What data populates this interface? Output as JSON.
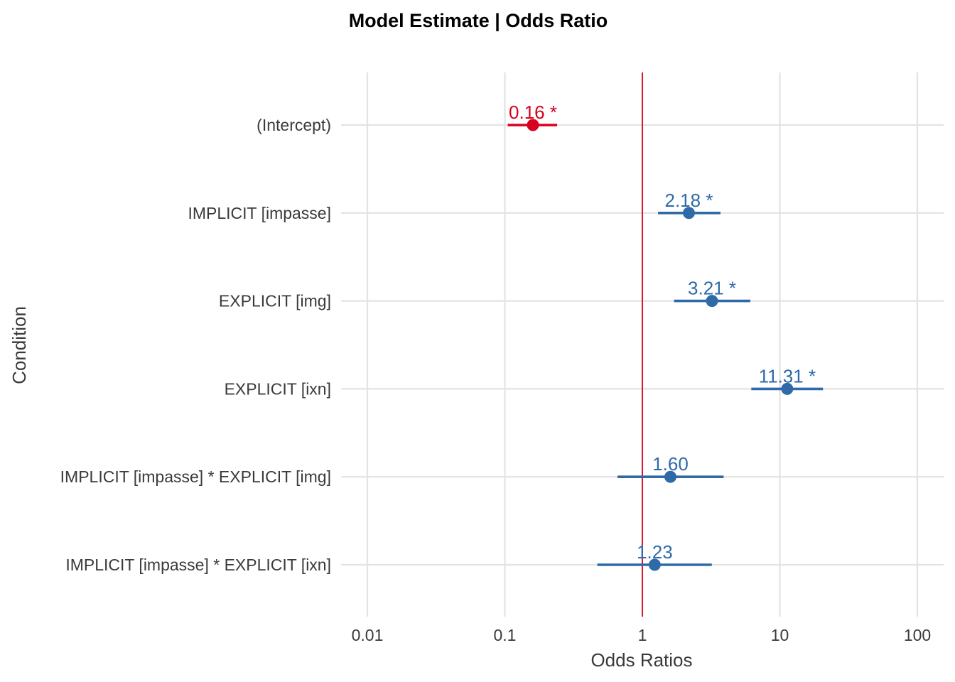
{
  "chart_data": {
    "type": "scatter",
    "title": "Model Estimate | Odds Ratio",
    "xlabel": "Odds Ratios",
    "ylabel": "Condition",
    "x_scale": "log",
    "xlim": [
      0.01,
      100
    ],
    "x_ticks": [
      "0.01",
      "0.1",
      "1",
      "10",
      "100"
    ],
    "x_tick_values": [
      0.01,
      0.1,
      1,
      10,
      100
    ],
    "reference_line": 1,
    "grid": true,
    "colors": {
      "negative": "#d7001e",
      "positive": "#2f6aa8",
      "reference": "#d7001e"
    },
    "terms": [
      {
        "label": "(Intercept)",
        "estimate": 0.16,
        "ci_low": 0.105,
        "ci_high": 0.24,
        "value_label": "0.16 *",
        "direction": "negative"
      },
      {
        "label": "IMPLICIT [impasse]",
        "estimate": 2.18,
        "ci_low": 1.3,
        "ci_high": 3.7,
        "value_label": "2.18 *",
        "direction": "positive"
      },
      {
        "label": "EXPLICIT [img]",
        "estimate": 3.21,
        "ci_low": 1.7,
        "ci_high": 6.1,
        "value_label": "3.21 *",
        "direction": "positive"
      },
      {
        "label": "EXPLICIT [ixn]",
        "estimate": 11.31,
        "ci_low": 6.2,
        "ci_high": 20.6,
        "value_label": "11.31 *",
        "direction": "positive"
      },
      {
        "label": "IMPLICIT [impasse] * EXPLICIT [img]",
        "estimate": 1.6,
        "ci_low": 0.66,
        "ci_high": 3.9,
        "value_label": "1.60",
        "direction": "positive"
      },
      {
        "label": "IMPLICIT [impasse] * EXPLICIT [ixn]",
        "estimate": 1.23,
        "ci_low": 0.47,
        "ci_high": 3.2,
        "value_label": "1.23",
        "direction": "positive"
      }
    ]
  }
}
